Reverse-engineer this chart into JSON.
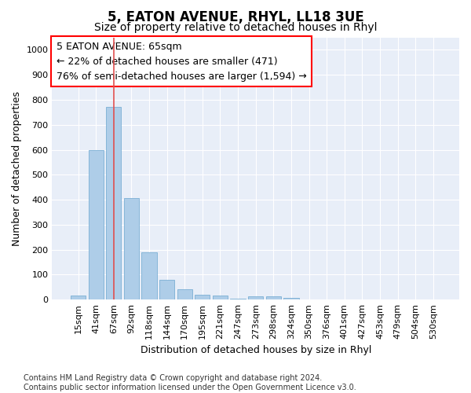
{
  "title": "5, EATON AVENUE, RHYL, LL18 3UE",
  "subtitle": "Size of property relative to detached houses in Rhyl",
  "xlabel": "Distribution of detached houses by size in Rhyl",
  "ylabel": "Number of detached properties",
  "bar_labels": [
    "15sqm",
    "41sqm",
    "67sqm",
    "92sqm",
    "118sqm",
    "144sqm",
    "170sqm",
    "195sqm",
    "221sqm",
    "247sqm",
    "273sqm",
    "298sqm",
    "324sqm",
    "350sqm",
    "376sqm",
    "401sqm",
    "427sqm",
    "453sqm",
    "479sqm",
    "504sqm",
    "530sqm"
  ],
  "bar_values": [
    15,
    600,
    770,
    405,
    190,
    78,
    40,
    18,
    17,
    5,
    13,
    13,
    8,
    0,
    0,
    0,
    0,
    0,
    0,
    0,
    0
  ],
  "bar_color": "#aecde8",
  "bar_edge_color": "#7aafd4",
  "vline_x": 2.0,
  "vline_color": "#e05050",
  "ylim": [
    0,
    1050
  ],
  "yticks": [
    0,
    100,
    200,
    300,
    400,
    500,
    600,
    700,
    800,
    900,
    1000
  ],
  "annotation_box_text": "5 EATON AVENUE: 65sqm\n← 22% of detached houses are smaller (471)\n76% of semi-detached houses are larger (1,594) →",
  "annotation_box_color": "red",
  "footer_text": "Contains HM Land Registry data © Crown copyright and database right 2024.\nContains public sector information licensed under the Open Government Licence v3.0.",
  "plot_bg_color": "#e8eef8",
  "fig_bg_color": "#ffffff",
  "grid_color": "#ffffff",
  "title_fontsize": 12,
  "subtitle_fontsize": 10,
  "axis_label_fontsize": 9,
  "tick_fontsize": 8,
  "annotation_fontsize": 9,
  "footer_fontsize": 7
}
